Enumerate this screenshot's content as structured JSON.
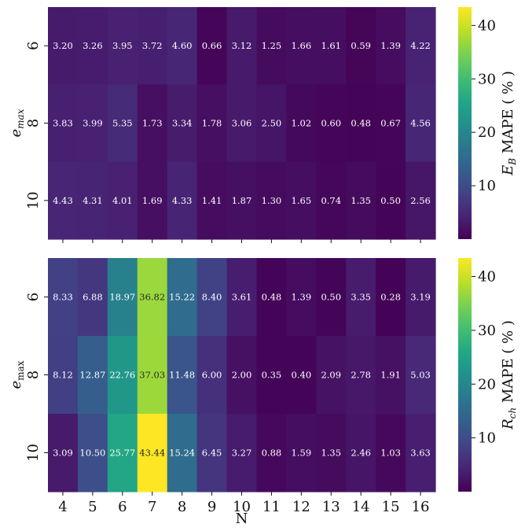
{
  "chart_data": [
    {
      "type": "heatmap",
      "xlabel": "",
      "ylabel": "e_max",
      "ylabel_parts": [
        "e",
        "max"
      ],
      "x": [
        "4",
        "5",
        "6",
        "7",
        "8",
        "9",
        "10",
        "11",
        "12",
        "13",
        "14",
        "15",
        "16"
      ],
      "y": [
        "6",
        "8",
        "10"
      ],
      "values": [
        [
          3.2,
          3.26,
          3.95,
          3.72,
          4.6,
          0.66,
          3.12,
          1.25,
          1.66,
          1.61,
          0.59,
          1.39,
          4.22
        ],
        [
          3.83,
          3.99,
          5.35,
          1.73,
          3.34,
          1.78,
          3.06,
          2.5,
          1.02,
          0.6,
          0.48,
          0.67,
          4.56
        ],
        [
          4.43,
          4.31,
          4.01,
          1.69,
          4.33,
          1.41,
          1.87,
          1.3,
          1.65,
          0.74,
          1.35,
          0.5,
          2.56
        ]
      ],
      "colorbar": {
        "label": "E_B MAPE ( % )",
        "label_parts": [
          "E",
          "B",
          " MAPE ( % )"
        ],
        "ticks": [
          "10",
          "20",
          "30",
          "40"
        ],
        "tick_values": [
          10,
          20,
          30,
          40
        ],
        "range": [
          0,
          43.44
        ],
        "colormap": "viridis"
      }
    },
    {
      "type": "heatmap",
      "xlabel": "N",
      "ylabel": "e_max",
      "ylabel_parts": [
        "e",
        "max"
      ],
      "x": [
        "4",
        "5",
        "6",
        "7",
        "8",
        "9",
        "10",
        "11",
        "12",
        "13",
        "14",
        "15",
        "16"
      ],
      "y": [
        "6",
        "8",
        "10"
      ],
      "values": [
        [
          8.33,
          6.88,
          18.97,
          36.82,
          15.22,
          8.4,
          3.61,
          0.48,
          1.39,
          0.5,
          3.35,
          0.28,
          3.19
        ],
        [
          8.12,
          12.87,
          22.76,
          37.03,
          11.48,
          6.0,
          2.0,
          0.35,
          0.4,
          2.09,
          2.78,
          1.91,
          5.03
        ],
        [
          3.09,
          10.5,
          25.77,
          43.44,
          15.24,
          6.45,
          3.27,
          0.88,
          1.59,
          1.35,
          2.46,
          1.03,
          3.63
        ]
      ],
      "colorbar": {
        "label": "R_ch MAPE ( % )",
        "label_parts": [
          "R",
          "ch",
          " MAPE ( % )"
        ],
        "ticks": [
          "10",
          "20",
          "30",
          "40"
        ],
        "tick_values": [
          10,
          20,
          30,
          40
        ],
        "range": [
          0,
          43.44
        ],
        "colormap": "viridis"
      }
    }
  ]
}
